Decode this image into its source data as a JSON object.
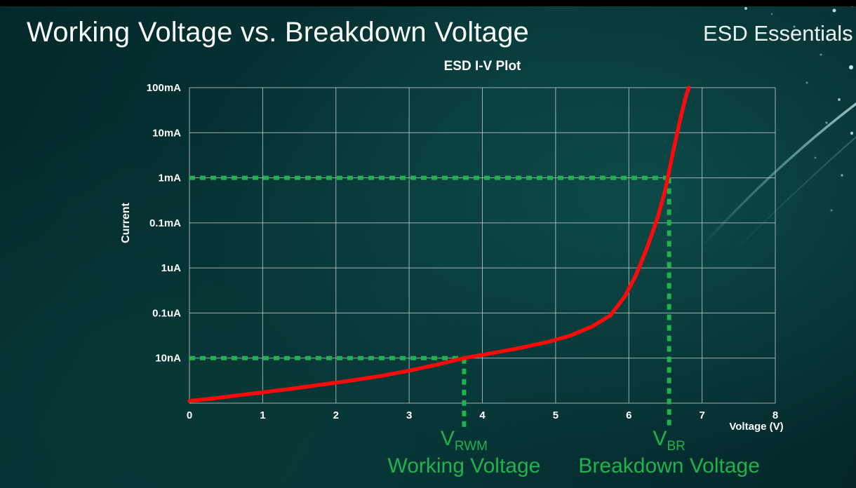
{
  "slide": {
    "title": "Working Voltage vs. Breakdown Voltage",
    "brand": "ESD Essentials"
  },
  "colors": {
    "background_teal": "#073638",
    "curve_red": "#F90B0B",
    "guide_green": "#22B14C",
    "annotation_green": "#22B14C",
    "grid_line": "#B9C6C6",
    "text_white": "#FFFFFF",
    "decor_cyan": "#A9E6EA"
  },
  "chart_data": {
    "type": "line",
    "title": "ESD I-V Plot",
    "xlabel": "Voltage (V)",
    "ylabel": "Current",
    "x_range": [
      0,
      8
    ],
    "x_tick_labels": [
      "0",
      "1",
      "2",
      "3",
      "4",
      "5",
      "6",
      "7",
      "8"
    ],
    "y_scale": "log",
    "y_tick_labels": [
      "100mA",
      "10mA",
      "1mA",
      "0.1mA",
      "1uA",
      "0.1uA",
      "10nA"
    ],
    "y_unit_rows_note": "row 0 = top gridline (100mA); each row is one labeled decade down; row 7 = unlabeled bottom gridline",
    "grid": true,
    "legend": false,
    "series": [
      {
        "name": "ESD device I-V curve",
        "color": "#F90B0B",
        "points_v_row": [
          [
            0.0,
            6.95
          ],
          [
            0.3,
            6.9
          ],
          [
            0.6,
            6.84
          ],
          [
            1.0,
            6.76
          ],
          [
            1.4,
            6.68
          ],
          [
            1.8,
            6.59
          ],
          [
            2.2,
            6.5
          ],
          [
            2.6,
            6.4
          ],
          [
            3.0,
            6.28
          ],
          [
            3.4,
            6.14
          ],
          [
            3.75,
            6.0
          ],
          [
            4.1,
            5.9
          ],
          [
            4.5,
            5.78
          ],
          [
            4.9,
            5.64
          ],
          [
            5.2,
            5.5
          ],
          [
            5.5,
            5.3
          ],
          [
            5.75,
            5.05
          ],
          [
            5.95,
            4.62
          ],
          [
            6.1,
            4.15
          ],
          [
            6.25,
            3.55
          ],
          [
            6.4,
            2.85
          ],
          [
            6.5,
            2.25
          ],
          [
            6.6,
            1.45
          ],
          [
            6.7,
            0.72
          ],
          [
            6.78,
            0.18
          ],
          [
            6.82,
            0.0
          ]
        ]
      }
    ],
    "guides": [
      {
        "name": "working-voltage",
        "v": 3.75,
        "row": 6,
        "at_current": "10nA",
        "symbol": "V",
        "subscript": "RWM",
        "label": "Working Voltage"
      },
      {
        "name": "breakdown-voltage",
        "v": 6.55,
        "row": 2,
        "at_current": "1mA",
        "symbol": "V",
        "subscript": "BR",
        "label": "Breakdown Voltage"
      }
    ]
  }
}
